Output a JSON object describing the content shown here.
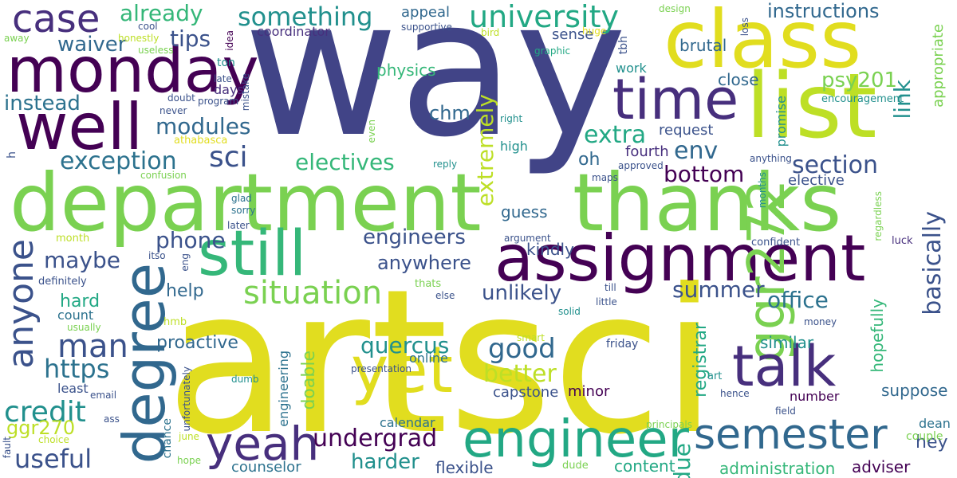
{
  "colors": {
    "background": "#ffffff",
    "dark_purple": "#440154",
    "purple": "#472f7d",
    "indigo": "#414487",
    "slate_blue": "#3b528b",
    "steel_blue": "#31688e",
    "blue_teal": "#2c728e",
    "teal": "#21908d",
    "green_teal": "#22a884",
    "green": "#35b779",
    "light_green": "#7ad151",
    "yellow_green": "#bddf26",
    "yellow": "#e1dd1f"
  },
  "words": {
    "artsci": "artsci",
    "way": "way",
    "department": "department",
    "thanks": "thanks",
    "class": "class",
    "list": "list",
    "assignment": "assignment",
    "still": "still",
    "monday": "monday",
    "well": "well",
    "degree": "degree",
    "ggr272": "ggr272",
    "yet": "yet",
    "talk": "talk",
    "time": "time",
    "engineer": "engineer",
    "semester": "semester",
    "yeah": "yeah",
    "anyone": "anyone",
    "case": "case",
    "university": "university",
    "something": "something",
    "situation": "situation",
    "undergrad": "undergrad",
    "man": "man",
    "sci": "sci",
    "engineers": "engineers",
    "summer": "summer",
    "electives": "electives",
    "exception": "exception",
    "bottom": "bottom",
    "section": "section",
    "env": "env",
    "extra": "extra",
    "modules": "modules",
    "instead": "instead",
    "credit": "credit",
    "useful": "useful",
    "https": "https",
    "maybe": "maybe",
    "phone": "phone",
    "already": "already",
    "instructions": "instructions",
    "tips": "tips",
    "waiver": "waiver",
    "good": "good",
    "better": "better",
    "quercus": "quercus",
    "unlikely": "unlikely",
    "extremely": "extremely",
    "basically": "basically",
    "link": "link",
    "psy201": "psy201",
    "office": "office",
    "harder": "harder",
    "due": "due",
    "ggr270": "ggr270",
    "hard": "hard",
    "anywhere": "anywhere",
    "help": "help",
    "proactive": "proactive",
    "doable": "doable",
    "registrar": "registrar",
    "hopefully": "hopefully",
    "similar": "similar",
    "suppose": "suppose",
    "capstone": "capstone",
    "minor": "minor",
    "flexible": "flexible",
    "content": "content",
    "administration": "administration",
    "adviser": "adviser",
    "counselor": "counselor",
    "hey": "hey",
    "guess": "guess",
    "kindly": "kindly",
    "chm": "chm",
    "physics": "physics",
    "close": "close",
    "brutal": "brutal",
    "appeal": "appeal",
    "sense": "sense",
    "coordinator": "coordinator",
    "request": "request",
    "fourth": "fourth",
    "oh": "oh",
    "elective": "elective",
    "appropriate": "appropriate",
    "engineering": "engineering",
    "number": "number",
    "calendar": "calendar",
    "online": "online",
    "count": "count",
    "least": "least",
    "dean": "dean",
    "couple": "couple",
    "high": "high",
    "friday": "friday",
    "work": "work",
    "days": "days",
    "tbh": "tbh",
    "promise": "promise",
    "encouragement": "encouragement",
    "design": "design",
    "loss": "loss",
    "huge": "huge",
    "bird": "bird",
    "supportive": "supportive",
    "graphic": "graphic",
    "cool": "cool",
    "honestly": "honestly",
    "away": "away",
    "useless": "useless",
    "idea": "idea",
    "ton": "ton",
    "late": "late",
    "mistake": "mistake",
    "doubt": "doubt",
    "never": "never",
    "program": "program",
    "athabasca": "athabasca",
    "confusion": "confusion",
    "reply": "reply",
    "approved": "approved",
    "maps": "maps",
    "right": "right",
    "even": "even",
    "anything": "anything",
    "months": "months",
    "glad": "glad",
    "sorry": "sorry",
    "later": "later",
    "itso": "itso",
    "eng": "eng",
    "month": "month",
    "argument": "argument",
    "confident": "confident",
    "luck": "luck",
    "regardless": "regardless",
    "definitely": "definitely",
    "thats": "thats",
    "else": "else",
    "till": "till",
    "little": "little",
    "solid": "solid",
    "usually": "usually",
    "hmb": "hmb",
    "money": "money",
    "smart": "smart",
    "dumb": "dumb",
    "presentation": "presentation",
    "unfortunately": "unfortunately",
    "art": "art",
    "hence": "hence",
    "email": "email",
    "field": "field",
    "ass": "ass",
    "choice": "choice",
    "principals": "principals",
    "chance": "chance",
    "june": "june",
    "hope": "hope",
    "dude": "dude",
    "fault": "fault",
    "h": "h"
  }
}
